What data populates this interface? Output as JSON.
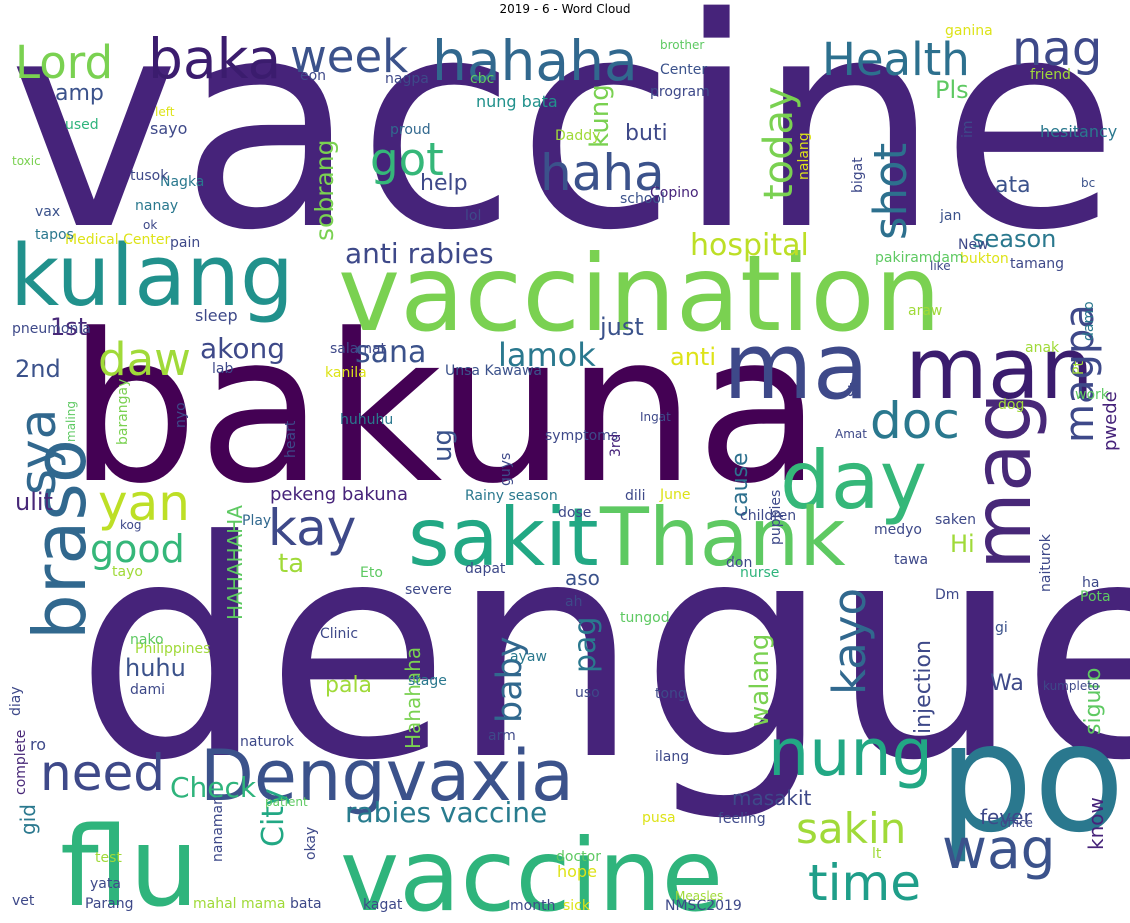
{
  "title": "2019 - 6 - Word Cloud",
  "palette": "viridis",
  "words": [
    {
      "text": "vaccine",
      "color": "#46237a"
    },
    {
      "text": "dengue",
      "color": "#46237a"
    },
    {
      "text": "bakuna",
      "color": "#440154"
    },
    {
      "text": "vaccination",
      "color": "#7ad151"
    },
    {
      "text": "vaccine",
      "color": "#2fb47c"
    },
    {
      "text": "flu",
      "color": "#2fb47c"
    },
    {
      "text": "po",
      "color": "#2a788e"
    },
    {
      "text": "Dengvaxia",
      "color": "#3b528b"
    },
    {
      "text": "kulang",
      "color": "#21918c"
    },
    {
      "text": "man",
      "color": "#3b1c6e"
    },
    {
      "text": "ma",
      "color": "#3e4989"
    },
    {
      "text": "day",
      "color": "#35b779"
    },
    {
      "text": "sakit",
      "color": "#22a884"
    },
    {
      "text": "Thank",
      "color": "#5ec962"
    },
    {
      "text": "mag",
      "color": "#482878"
    },
    {
      "text": "braso",
      "color": "#31688e"
    },
    {
      "text": "hahaha",
      "color": "#31688e"
    },
    {
      "text": "baka",
      "color": "#3b1c6e"
    },
    {
      "text": "week",
      "color": "#3b528b"
    },
    {
      "text": "Lord",
      "color": "#7ad151"
    },
    {
      "text": "Health",
      "color": "#2d708e"
    },
    {
      "text": "haha",
      "color": "#3b528b"
    },
    {
      "text": "nag",
      "color": "#3e4989"
    },
    {
      "text": "nung",
      "color": "#22a884"
    },
    {
      "text": "time",
      "color": "#1f9e89"
    },
    {
      "text": "need",
      "color": "#3e4989"
    },
    {
      "text": "wag",
      "color": "#3b528b"
    },
    {
      "text": "kay",
      "color": "#3e4989"
    },
    {
      "text": "daw",
      "color": "#a0da39"
    },
    {
      "text": "sya",
      "color": "#31688e"
    },
    {
      "text": "yan",
      "color": "#bddf26"
    },
    {
      "text": "doc",
      "color": "#2a788e"
    },
    {
      "text": "got",
      "color": "#35b779"
    },
    {
      "text": "today",
      "color": "#7ad151"
    },
    {
      "text": "shot",
      "color": "#2d708e"
    },
    {
      "text": "magpa",
      "color": "#3e4989"
    },
    {
      "text": "kayo",
      "color": "#31688e"
    },
    {
      "text": "good",
      "color": "#35b779"
    },
    {
      "text": "sakin",
      "color": "#a0da39"
    },
    {
      "text": "rabies vaccine",
      "color": "#287c8e"
    },
    {
      "text": "anti rabies",
      "color": "#3e4989"
    },
    {
      "text": "lamok",
      "color": "#2a788e"
    },
    {
      "text": "City",
      "color": "#22a884"
    },
    {
      "text": "baby",
      "color": "#31688e"
    },
    {
      "text": "hospital",
      "color": "#bddf26"
    },
    {
      "text": "sana",
      "color": "#3b528b"
    },
    {
      "text": "Check",
      "color": "#2fb47c"
    },
    {
      "text": "akong",
      "color": "#3e4989"
    },
    {
      "text": "amp",
      "color": "#3b528b"
    },
    {
      "text": "sobrang",
      "color": "#7ad151"
    },
    {
      "text": "huhu",
      "color": "#3b528b"
    },
    {
      "text": "just",
      "color": "#3b528b"
    },
    {
      "text": "anti",
      "color": "#dde318"
    },
    {
      "text": "pag",
      "color": "#2a788e"
    },
    {
      "text": "walang",
      "color": "#7ad151"
    },
    {
      "text": "kung",
      "color": "#7ad151"
    },
    {
      "text": "buti",
      "color": "#3e4989"
    },
    {
      "text": "help",
      "color": "#3e4989"
    },
    {
      "text": "ata",
      "color": "#3b528b"
    },
    {
      "text": "season",
      "color": "#2a788e"
    },
    {
      "text": "Pls",
      "color": "#5ec962"
    },
    {
      "text": "ta",
      "color": "#a0da39"
    },
    {
      "text": "Hi",
      "color": "#a0da39"
    },
    {
      "text": "ug",
      "color": "#3b528b"
    },
    {
      "text": "cause",
      "color": "#2d708e"
    },
    {
      "text": "masakit",
      "color": "#3e4989"
    },
    {
      "text": "pala",
      "color": "#a0da39"
    },
    {
      "text": "ulit",
      "color": "#482878"
    },
    {
      "text": "1st",
      "color": "#482878"
    },
    {
      "text": "2nd",
      "color": "#3b528b"
    },
    {
      "text": "HAHAHAHA",
      "color": "#5ec962"
    },
    {
      "text": "Hahahaha",
      "color": "#7ad151"
    },
    {
      "text": "pekeng bakuna",
      "color": "#46237a"
    },
    {
      "text": "aso",
      "color": "#3b528b"
    },
    {
      "text": "injection",
      "color": "#3e4989"
    },
    {
      "text": "siguro",
      "color": "#5ec962"
    },
    {
      "text": "pwede",
      "color": "#46237a"
    },
    {
      "text": "fever",
      "color": "#3e4989"
    },
    {
      "text": "know",
      "color": "#46237a"
    },
    {
      "text": "Wa",
      "color": "#3e4989"
    },
    {
      "text": "gid",
      "color": "#2a788e"
    },
    {
      "text": "sayo",
      "color": "#3e4989"
    },
    {
      "text": "nung bata",
      "color": "#21918c"
    },
    {
      "text": "cbc",
      "color": "#5ec962"
    },
    {
      "text": "Center",
      "color": "#3b528b"
    },
    {
      "text": "program",
      "color": "#3e4989"
    },
    {
      "text": "Daddy",
      "color": "#a0da39"
    },
    {
      "text": "proud",
      "color": "#31688e"
    },
    {
      "text": "school",
      "color": "#3b528b"
    },
    {
      "text": "Copino",
      "color": "#46237a"
    },
    {
      "text": "lol",
      "color": "#3e4989"
    },
    {
      "text": "Nagka",
      "color": "#2a788e"
    },
    {
      "text": "tusok",
      "color": "#3e4989"
    },
    {
      "text": "nanay",
      "color": "#2a788e"
    },
    {
      "text": "pain",
      "color": "#3e4989"
    },
    {
      "text": "Medical Center",
      "color": "#dde318"
    },
    {
      "text": "tapos",
      "color": "#2a788e"
    },
    {
      "text": "vax",
      "color": "#3b528b"
    },
    {
      "text": "ok",
      "color": "#3e4989"
    },
    {
      "text": "toxic",
      "color": "#7ad151"
    },
    {
      "text": "used",
      "color": "#2fb47c"
    },
    {
      "text": "left",
      "color": "#dde318"
    },
    {
      "text": "eon",
      "color": "#3e4989"
    },
    {
      "text": "nagpa",
      "color": "#3e4989"
    },
    {
      "text": "brother",
      "color": "#5ec962"
    },
    {
      "text": "ganina",
      "color": "#dde318"
    },
    {
      "text": "friend",
      "color": "#a0da39"
    },
    {
      "text": "hesitancy",
      "color": "#2a788e"
    },
    {
      "text": "im",
      "color": "#3e4989"
    },
    {
      "text": "nalang",
      "color": "#dde318"
    },
    {
      "text": "bigat",
      "color": "#3e4989"
    },
    {
      "text": "bc",
      "color": "#3b528b"
    },
    {
      "text": "jan",
      "color": "#3b528b"
    },
    {
      "text": "New",
      "color": "#3e4989"
    },
    {
      "text": "like",
      "color": "#3e4989"
    },
    {
      "text": "bukton",
      "color": "#dde318"
    },
    {
      "text": "tamang",
      "color": "#3e4989"
    },
    {
      "text": "pakiramdam",
      "color": "#5ec962"
    },
    {
      "text": "araw",
      "color": "#a0da39"
    },
    {
      "text": "damo",
      "color": "#2a788e"
    },
    {
      "text": "Pt",
      "color": "#a0da39"
    },
    {
      "text": "work",
      "color": "#5ec962"
    },
    {
      "text": "St",
      "color": "#3e4989"
    },
    {
      "text": "anak",
      "color": "#a0da39"
    },
    {
      "text": "salamat",
      "color": "#3e4989"
    },
    {
      "text": "sleep",
      "color": "#3e4989"
    },
    {
      "text": "pneumonia",
      "color": "#3e4989"
    },
    {
      "text": "lab",
      "color": "#3e4989"
    },
    {
      "text": "kanila",
      "color": "#dde318"
    },
    {
      "text": "Unsa Kawawa",
      "color": "#3b528b"
    },
    {
      "text": "nyo",
      "color": "#3e4989"
    },
    {
      "text": "maling",
      "color": "#5ec962"
    },
    {
      "text": "barangay",
      "color": "#7ad151"
    },
    {
      "text": "heart",
      "color": "#3e4989"
    },
    {
      "text": "huhuhu",
      "color": "#2a788e"
    },
    {
      "text": "guys",
      "color": "#3e4989"
    },
    {
      "text": "symptoms",
      "color": "#3e4989"
    },
    {
      "text": "3rd",
      "color": "#46237a"
    },
    {
      "text": "Ingat",
      "color": "#3e4989"
    },
    {
      "text": "Amat",
      "color": "#3e4989"
    },
    {
      "text": "dog",
      "color": "#a0da39"
    },
    {
      "text": "naiturok",
      "color": "#3e4989"
    },
    {
      "text": "Rainy season",
      "color": "#2a788e"
    },
    {
      "text": "dose",
      "color": "#3e4989"
    },
    {
      "text": "dili",
      "color": "#3e4989"
    },
    {
      "text": "June",
      "color": "#dde318"
    },
    {
      "text": "puppies",
      "color": "#3e4989"
    },
    {
      "text": "children",
      "color": "#3e4989"
    },
    {
      "text": "saken",
      "color": "#3e4989"
    },
    {
      "text": "medyo",
      "color": "#3e4989"
    },
    {
      "text": "tawa",
      "color": "#3e4989"
    },
    {
      "text": "don",
      "color": "#3e4989"
    },
    {
      "text": "kog",
      "color": "#3e4989"
    },
    {
      "text": "Play",
      "color": "#31688e"
    },
    {
      "text": "tayo",
      "color": "#a0da39"
    },
    {
      "text": "Eto",
      "color": "#5ec962"
    },
    {
      "text": "dapat",
      "color": "#3e4989"
    },
    {
      "text": "nurse",
      "color": "#2fb47c"
    },
    {
      "text": "severe",
      "color": "#3e4989"
    },
    {
      "text": "ah",
      "color": "#3e4989"
    },
    {
      "text": "Dm",
      "color": "#3e4989"
    },
    {
      "text": "ha",
      "color": "#3e4989"
    },
    {
      "text": "Pota",
      "color": "#5ec962"
    },
    {
      "text": "diay",
      "color": "#3e4989"
    },
    {
      "text": "Philippines",
      "color": "#a0da39"
    },
    {
      "text": "nako",
      "color": "#5ec962"
    },
    {
      "text": "Clinic",
      "color": "#3e4989"
    },
    {
      "text": "tungod",
      "color": "#5ec962"
    },
    {
      "text": "ayaw",
      "color": "#2a788e"
    },
    {
      "text": "gi",
      "color": "#3b528b"
    },
    {
      "text": "dami",
      "color": "#3e4989"
    },
    {
      "text": "stage",
      "color": "#2a788e"
    },
    {
      "text": "uso",
      "color": "#3e4989"
    },
    {
      "text": "tong",
      "color": "#3e4989"
    },
    {
      "text": "kumpleto",
      "color": "#3e4989"
    },
    {
      "text": "ro",
      "color": "#3e4989"
    },
    {
      "text": "complete",
      "color": "#482878"
    },
    {
      "text": "naturok",
      "color": "#3e4989"
    },
    {
      "text": "arm",
      "color": "#3e4989"
    },
    {
      "text": "ilang",
      "color": "#3e4989"
    },
    {
      "text": "patient",
      "color": "#5ec962"
    },
    {
      "text": "pusa",
      "color": "#dde318"
    },
    {
      "text": "feeling",
      "color": "#3e4989"
    },
    {
      "text": "office",
      "color": "#3e4989"
    },
    {
      "text": "nanaman",
      "color": "#3e4989"
    },
    {
      "text": "okay",
      "color": "#3e4989"
    },
    {
      "text": "doctor",
      "color": "#5ec962"
    },
    {
      "text": "hope",
      "color": "#dde318"
    },
    {
      "text": "lt",
      "color": "#a0da39"
    },
    {
      "text": "test",
      "color": "#a0da39"
    },
    {
      "text": "yata",
      "color": "#3e4989"
    },
    {
      "text": "vet",
      "color": "#3e4989"
    },
    {
      "text": "Parang",
      "color": "#3e4989"
    },
    {
      "text": "mahal mama",
      "color": "#a0da39"
    },
    {
      "text": "bata",
      "color": "#3e4989"
    },
    {
      "text": "kagat",
      "color": "#3e4989"
    },
    {
      "text": "month",
      "color": "#3e4989"
    },
    {
      "text": "sick",
      "color": "#dde318"
    },
    {
      "text": "NMSC2019",
      "color": "#3e4989"
    },
    {
      "text": "Measles",
      "color": "#a0da39"
    }
  ]
}
